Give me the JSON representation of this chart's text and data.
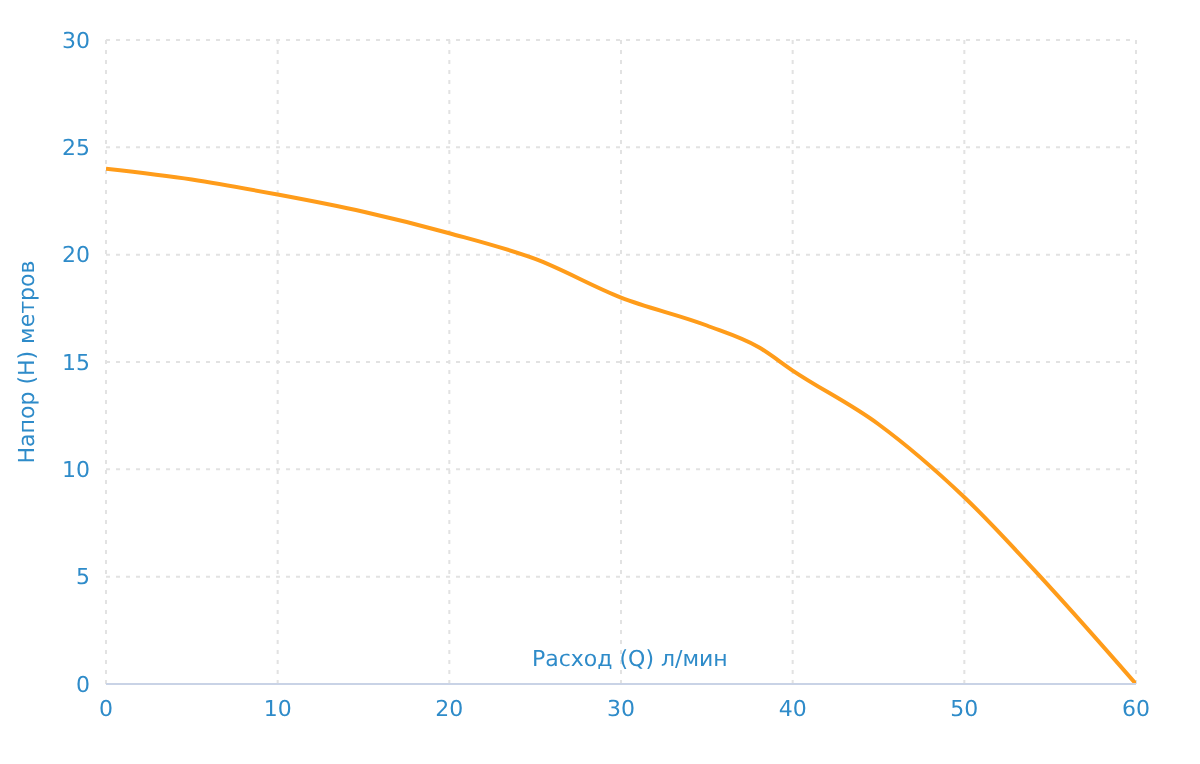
{
  "chart_data": {
    "type": "line",
    "xlabel": "Расход (Q) л/мин",
    "ylabel": "Напор (H) метров",
    "x": [
      0,
      5,
      10,
      15,
      20,
      25,
      30,
      35,
      38,
      40,
      45,
      50,
      55,
      60
    ],
    "series": [
      {
        "color": "#ff9c1a",
        "values": [
          24,
          23.5,
          22.8,
          22.0,
          21.0,
          19.8,
          18.0,
          16.7,
          15.7,
          14.6,
          12.1,
          8.7,
          4.5,
          0
        ]
      }
    ],
    "xlim": [
      0,
      60
    ],
    "xticks": [
      0,
      10,
      20,
      30,
      40,
      50,
      60
    ],
    "ylim": [
      0,
      30
    ],
    "yticks": [
      0,
      5,
      10,
      15,
      20,
      25,
      30
    ],
    "grid": true,
    "marker": "none",
    "line_style": "solid"
  }
}
